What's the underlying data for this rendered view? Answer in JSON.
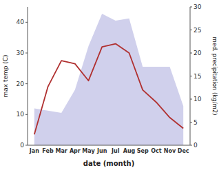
{
  "chart_data": {
    "type": "line",
    "x_label": "date (month)",
    "y_label": "max temp (C)",
    "y2_label": "med. precipitation (kg/m2)",
    "categories": [
      "Jan",
      "Feb",
      "Mar",
      "Apr",
      "May",
      "Jun",
      "Jul",
      "Aug",
      "Sep",
      "Oct",
      "Nov",
      "Dec"
    ],
    "series": [
      {
        "type": "line",
        "color": "#b03030",
        "values": [
          3.5,
          19.0,
          27.5,
          26.5,
          21.0,
          32.0,
          33.0,
          30.0,
          18.0,
          14.0,
          9.0,
          5.5
        ]
      },
      {
        "type": "area",
        "axis": "y2",
        "color": "#aaaadd",
        "values": [
          8.0,
          7.5,
          7.0,
          12.0,
          21.5,
          28.5,
          27.0,
          27.5,
          17.0,
          17.0,
          17.0,
          8.5
        ]
      }
    ],
    "ylim": [
      0,
      45
    ],
    "yticks": [
      0,
      10,
      20,
      30,
      40
    ],
    "y2lim": [
      0,
      30
    ],
    "y2ticks": [
      0,
      5,
      10,
      15,
      20,
      25,
      30
    ],
    "grid": false
  }
}
